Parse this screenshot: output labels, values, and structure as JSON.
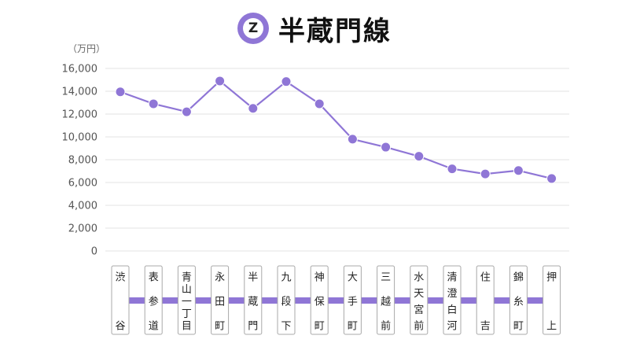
{
  "header": {
    "badge_letter": "Z",
    "title": "半蔵門線"
  },
  "colors": {
    "line": "#8f76d6",
    "point": "#8f76d6",
    "grid": "#e3e3e3",
    "route_bar": "#8f76d6"
  },
  "chart_data": {
    "type": "line",
    "title": "半蔵門線",
    "unit_label": "（万円）",
    "ylim": [
      0,
      16000
    ],
    "yticks": [
      "0",
      "2,000",
      "4,000",
      "6,000",
      "8,000",
      "10,000",
      "12,000",
      "14,000",
      "16,000"
    ],
    "grid": true,
    "categories": [
      "渋谷",
      "表参道",
      "青山一丁目",
      "永田町",
      "半蔵門",
      "九段下",
      "神保町",
      "大手町",
      "三越前",
      "水天宮前",
      "清澄白河",
      "住吉",
      "錦糸町",
      "押上"
    ],
    "station_label_lines": [
      [
        "渋",
        "",
        "谷"
      ],
      [
        "表",
        "参",
        "道"
      ],
      [
        "青",
        "山",
        "一",
        "丁",
        "目"
      ],
      [
        "永",
        "田",
        "町"
      ],
      [
        "半",
        "蔵",
        "門"
      ],
      [
        "九",
        "段",
        "下"
      ],
      [
        "神",
        "保",
        "町"
      ],
      [
        "大",
        "手",
        "町"
      ],
      [
        "三",
        "越",
        "前"
      ],
      [
        "水",
        "天",
        "宮",
        "前"
      ],
      [
        "清",
        "澄",
        "白",
        "河"
      ],
      [
        "住",
        "",
        "吉"
      ],
      [
        "錦",
        "糸",
        "町"
      ],
      [
        "押",
        "",
        "上"
      ]
    ],
    "values": [
      13950,
      12900,
      12200,
      14900,
      12500,
      14850,
      12900,
      9800,
      9100,
      8300,
      7200,
      6750,
      7050,
      6350
    ]
  }
}
